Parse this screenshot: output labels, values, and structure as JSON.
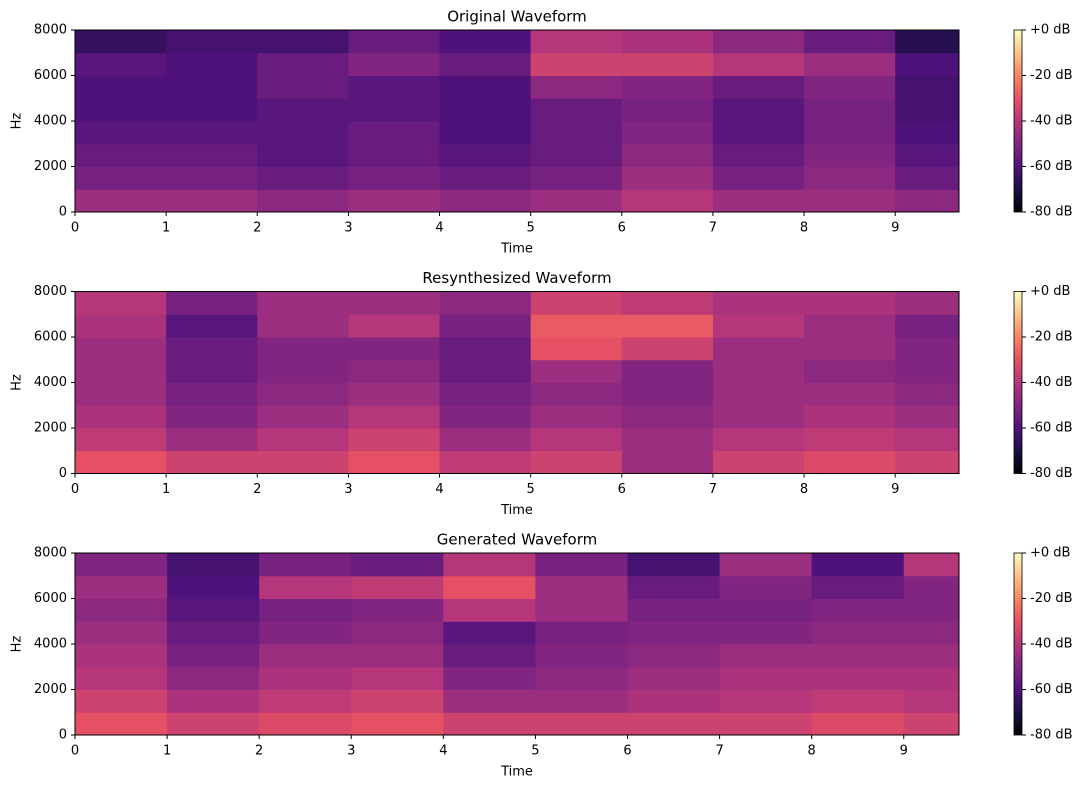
{
  "chart_data": [
    {
      "type": "spectrogram",
      "title": "Original Waveform",
      "x_label": "Time",
      "y_label": "Hz",
      "xlim": [
        0,
        9.7
      ],
      "xticks": [
        0,
        1,
        2,
        3,
        4,
        5,
        6,
        7,
        8,
        9
      ],
      "ylim": [
        0,
        8000
      ],
      "yticks": [
        0,
        2000,
        4000,
        6000,
        8000
      ],
      "time_bins": [
        0,
        1,
        2,
        3,
        4,
        5,
        6,
        7,
        8,
        9,
        9.7
      ],
      "freq_bins": [
        0,
        1000,
        2000,
        3000,
        4000,
        5000,
        6000,
        7000,
        8000
      ],
      "clim": [
        -80,
        0
      ],
      "cticks": [
        {
          "value": 0,
          "label": "+0 dB"
        },
        {
          "value": -20,
          "label": "-20 dB"
        },
        {
          "value": -40,
          "label": "-40 dB"
        },
        {
          "value": -60,
          "label": "-60 dB"
        },
        {
          "value": -80,
          "label": "-80 dB"
        }
      ],
      "colormap": "magma",
      "values": [
        [
          -45,
          -45,
          -48,
          -45,
          -48,
          -45,
          -40,
          -45,
          -45,
          -48
        ],
        [
          -52,
          -52,
          -55,
          -52,
          -55,
          -52,
          -45,
          -52,
          -48,
          -55
        ],
        [
          -55,
          -55,
          -58,
          -55,
          -58,
          -55,
          -48,
          -55,
          -50,
          -58
        ],
        [
          -58,
          -58,
          -58,
          -55,
          -60,
          -55,
          -50,
          -58,
          -52,
          -60
        ],
        [
          -60,
          -60,
          -58,
          -58,
          -60,
          -55,
          -52,
          -58,
          -52,
          -62
        ],
        [
          -60,
          -60,
          -55,
          -58,
          -60,
          -48,
          -50,
          -55,
          -50,
          -62
        ],
        [
          -58,
          -60,
          -55,
          -50,
          -55,
          -35,
          -35,
          -40,
          -45,
          -60
        ],
        [
          -65,
          -62,
          -62,
          -55,
          -60,
          -40,
          -42,
          -48,
          -55,
          -68
        ]
      ]
    },
    {
      "type": "spectrogram",
      "title": "Resynthesized Waveform",
      "x_label": "Time",
      "y_label": "Hz",
      "xlim": [
        0,
        9.7
      ],
      "xticks": [
        0,
        1,
        2,
        3,
        4,
        5,
        6,
        7,
        8,
        9
      ],
      "ylim": [
        0,
        8000
      ],
      "yticks": [
        0,
        2000,
        4000,
        6000,
        8000
      ],
      "time_bins": [
        0,
        1,
        2,
        3,
        4,
        5,
        6,
        7,
        8,
        9,
        9.7
      ],
      "freq_bins": [
        0,
        1000,
        2000,
        3000,
        4000,
        5000,
        6000,
        7000,
        8000
      ],
      "clim": [
        -80,
        0
      ],
      "cticks": [
        {
          "value": 0,
          "label": "+0 dB"
        },
        {
          "value": -20,
          "label": "-20 dB"
        },
        {
          "value": -40,
          "label": "-40 dB"
        },
        {
          "value": -60,
          "label": "-60 dB"
        },
        {
          "value": -80,
          "label": "-80 dB"
        }
      ],
      "colormap": "magma",
      "values": [
        [
          -30,
          -35,
          -35,
          -30,
          -38,
          -35,
          -45,
          -35,
          -32,
          -35
        ],
        [
          -38,
          -45,
          -40,
          -35,
          -45,
          -40,
          -45,
          -40,
          -38,
          -40
        ],
        [
          -42,
          -50,
          -45,
          -40,
          -50,
          -45,
          -48,
          -45,
          -42,
          -45
        ],
        [
          -45,
          -52,
          -48,
          -45,
          -52,
          -48,
          -50,
          -45,
          -45,
          -48
        ],
        [
          -45,
          -55,
          -50,
          -48,
          -55,
          -45,
          -50,
          -45,
          -48,
          -50
        ],
        [
          -45,
          -55,
          -50,
          -50,
          -55,
          -30,
          -35,
          -45,
          -45,
          -50
        ],
        [
          -42,
          -58,
          -45,
          -40,
          -52,
          -28,
          -28,
          -40,
          -45,
          -52
        ],
        [
          -40,
          -52,
          -45,
          -45,
          -48,
          -35,
          -38,
          -42,
          -42,
          -45
        ]
      ]
    },
    {
      "type": "spectrogram",
      "title": "Generated Waveform",
      "x_label": "Time",
      "y_label": "Hz",
      "xlim": [
        0,
        9.6
      ],
      "xticks": [
        0,
        1,
        2,
        3,
        4,
        5,
        6,
        7,
        8,
        9
      ],
      "ylim": [
        0,
        8000
      ],
      "yticks": [
        0,
        2000,
        4000,
        6000,
        8000
      ],
      "time_bins": [
        0,
        1,
        2,
        3,
        4,
        5,
        6,
        7,
        8,
        9,
        9.6
      ],
      "freq_bins": [
        0,
        1000,
        2000,
        3000,
        4000,
        5000,
        6000,
        7000,
        8000
      ],
      "clim": [
        -80,
        0
      ],
      "cticks": [
        {
          "value": 0,
          "label": "+0 dB"
        },
        {
          "value": -20,
          "label": "-20 dB"
        },
        {
          "value": -40,
          "label": "-40 dB"
        },
        {
          "value": -60,
          "label": "-60 dB"
        },
        {
          "value": -80,
          "label": "-80 dB"
        }
      ],
      "colormap": "magma",
      "values": [
        [
          -30,
          -35,
          -32,
          -30,
          -35,
          -35,
          -35,
          -35,
          -32,
          -35
        ],
        [
          -35,
          -42,
          -38,
          -35,
          -45,
          -45,
          -42,
          -40,
          -38,
          -40
        ],
        [
          -40,
          -48,
          -42,
          -40,
          -50,
          -48,
          -45,
          -42,
          -42,
          -42
        ],
        [
          -42,
          -52,
          -45,
          -45,
          -55,
          -50,
          -48,
          -45,
          -45,
          -45
        ],
        [
          -45,
          -55,
          -50,
          -48,
          -58,
          -52,
          -50,
          -50,
          -48,
          -48
        ],
        [
          -48,
          -58,
          -52,
          -50,
          -40,
          -45,
          -52,
          -52,
          -50,
          -50
        ],
        [
          -45,
          -60,
          -40,
          -38,
          -30,
          -45,
          -55,
          -50,
          -55,
          -50
        ],
        [
          -50,
          -62,
          -52,
          -55,
          -40,
          -52,
          -62,
          -45,
          -60,
          -40
        ]
      ]
    }
  ]
}
